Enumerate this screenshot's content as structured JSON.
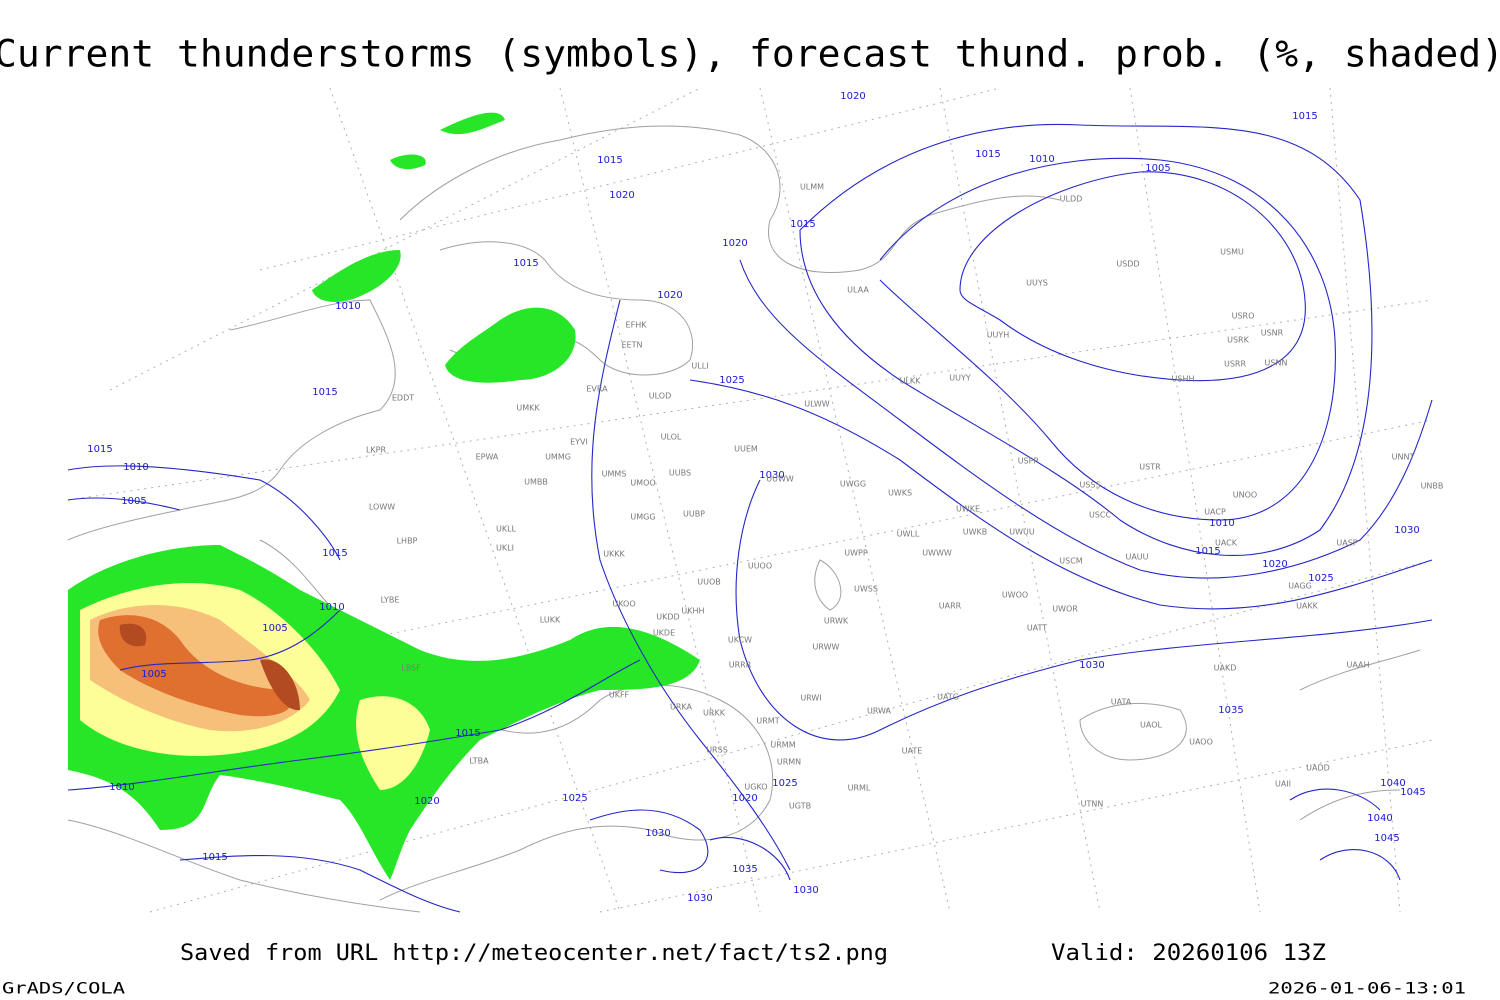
{
  "title": "Current thunderstorms (symbols), forecast thund. prob. (%, shaded)",
  "footer": {
    "source": "Saved from URL http://meteocenter.net/fact/ts2.png",
    "valid": "Valid: 20260106 13Z",
    "credit": "GrADS/COLA",
    "timestamp": "2026-01-06-13:01"
  },
  "isobar_labels": [
    "1020",
    "1015",
    "1015",
    "1010",
    "1005",
    "1015",
    "1020",
    "1020",
    "1015",
    "1015",
    "1020",
    "1010",
    "1015",
    "1025",
    "1015",
    "1010",
    "1005",
    "1030",
    "1010",
    "1015",
    "1020",
    "1025",
    "1030",
    "1015",
    "1010",
    "1005",
    "1005",
    "1030",
    "1035",
    "1015",
    "1010",
    "1025",
    "1020",
    "1025",
    "1020",
    "1030",
    "1015",
    "1035",
    "1030",
    "1030",
    "1040",
    "1045",
    "1040",
    "1045"
  ],
  "station_labels": [
    "ULMM",
    "ULDD",
    "USDD",
    "USMU",
    "UUYS",
    "ULAA",
    "EFHK",
    "EETN",
    "USRO",
    "USRK",
    "USNR",
    "UUYH",
    "USRR",
    "USNN",
    "ULLI",
    "USHH",
    "UUYY",
    "ULKK",
    "EVRA",
    "ULOD",
    "EDDT",
    "UMKK",
    "ULWW",
    "EYVI",
    "ULOL",
    "UUEM",
    "LKPR",
    "EPWA",
    "UMMG",
    "USPP",
    "USTR",
    "UMMS",
    "UUBS",
    "UUWW",
    "UMOO",
    "UMBB",
    "USSS",
    "UWGG",
    "UWKS",
    "UNOO",
    "UNNT",
    "UNBB",
    "USCC",
    "UACP",
    "LOWW",
    "UWKE",
    "UMGG",
    "UUBP",
    "UKLL",
    "UWKB",
    "UWUU",
    "UWLL",
    "UACK",
    "UASP",
    "LHBP",
    "UKLI",
    "USCM",
    "UAUU",
    "UWPP",
    "UWWW",
    "UKKK",
    "UUOO",
    "UUOB",
    "UWSS",
    "UAKK",
    "UAGG",
    "UWOO",
    "UWOR",
    "UARR",
    "LYBE",
    "UKDD",
    "UKHH",
    "LUKK",
    "UKOO",
    "URWK",
    "UKDE",
    "UATT",
    "UKCW",
    "URWW",
    "URRR",
    "UAKD",
    "UAAH",
    "LBSF",
    "UKFF",
    "URWI",
    "UATG",
    "UATA",
    "URKA",
    "URKK",
    "URWA",
    "UAOL",
    "URMT",
    "URMM",
    "UAOO",
    "URSS",
    "UATE",
    "URMN",
    "LTBA",
    "UGKO",
    "URML",
    "UGTB",
    "UTNN",
    "UAII",
    "UADD"
  ]
}
